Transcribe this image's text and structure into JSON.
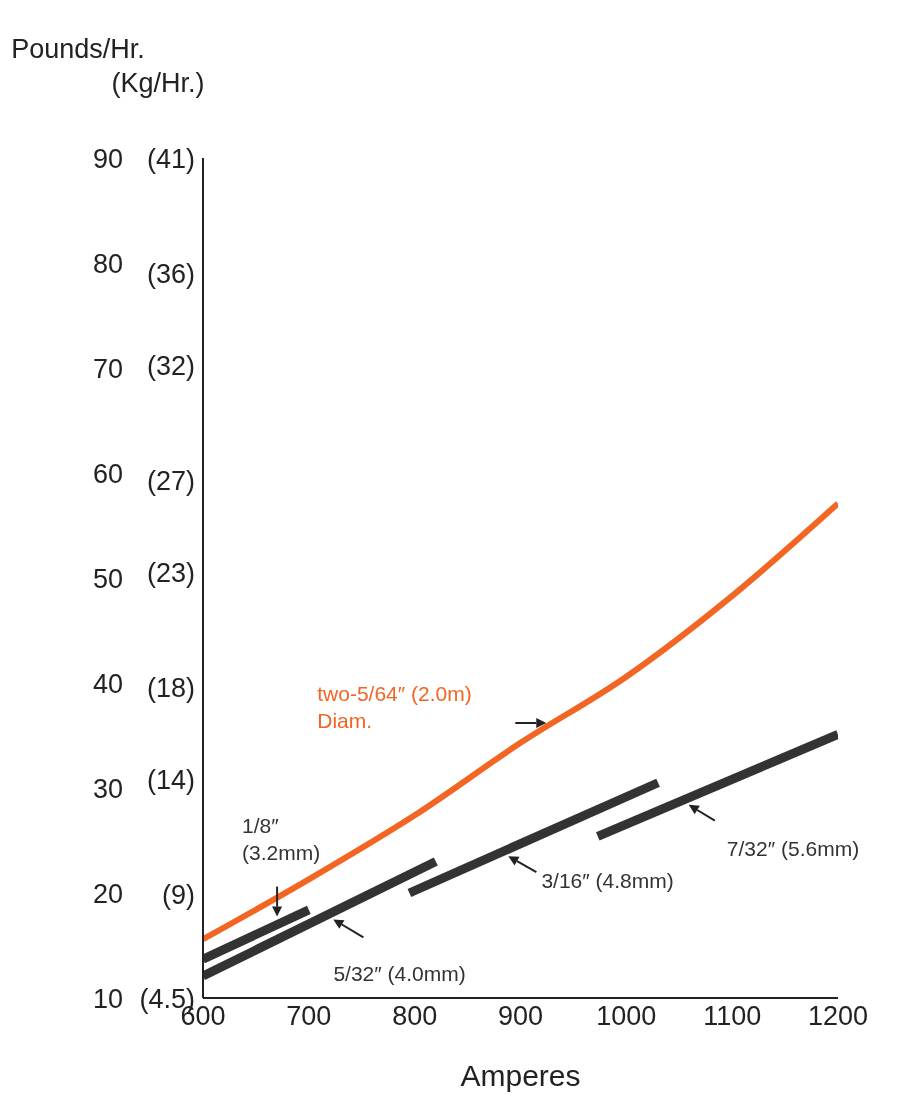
{
  "chart_data": {
    "type": "line",
    "xlabel": "Amperes",
    "ylabel": "Pounds/Hr.",
    "y2label": "(Kg/Hr.)",
    "xlim": [
      600,
      1200
    ],
    "xticks": [
      600,
      700,
      800,
      900,
      1000,
      1100,
      1200
    ],
    "ylim": [
      10,
      90
    ],
    "yticks": [
      10,
      20,
      30,
      40,
      50,
      60,
      70,
      80,
      90
    ],
    "y2lim": [
      4.5,
      41
    ],
    "y2ticks": [
      {
        "value": 4.5,
        "label": "(4.5)"
      },
      {
        "value": 9,
        "label": "(9)"
      },
      {
        "value": 14,
        "label": "(14)"
      },
      {
        "value": 18,
        "label": "(18)"
      },
      {
        "value": 23,
        "label": "(23)"
      },
      {
        "value": 27,
        "label": "(27)"
      },
      {
        "value": 32,
        "label": "(32)"
      },
      {
        "value": 36,
        "label": "(36)"
      },
      {
        "value": 41,
        "label": "(41)"
      }
    ],
    "grid": false,
    "marker": "none",
    "line_style": "solid",
    "series": [
      {
        "name": "two-5/64″ (2.0m) Diam.",
        "color": "#f26522",
        "x": [
          600,
          700,
          800,
          900,
          1000,
          1100,
          1200
        ],
        "values": [
          15.6,
          21.3,
          27.4,
          34.3,
          40.6,
          48.3,
          57.1
        ]
      },
      {
        "name": "1/8″ (3.2mm)",
        "color": "#333333",
        "x": [
          600,
          700
        ],
        "values": [
          13.7,
          18.4
        ]
      },
      {
        "name": "5/32″ (4.0mm)",
        "color": "#333333",
        "x": [
          600,
          820
        ],
        "values": [
          12.1,
          23.0
        ]
      },
      {
        "name": "3/16″ (4.8mm)",
        "color": "#333333",
        "x": [
          795,
          1030
        ],
        "values": [
          20.0,
          30.5
        ]
      },
      {
        "name": "7/32″ (5.6mm)",
        "color": "#333333",
        "x": [
          973,
          1200
        ],
        "values": [
          25.4,
          35.1
        ]
      }
    ]
  }
}
